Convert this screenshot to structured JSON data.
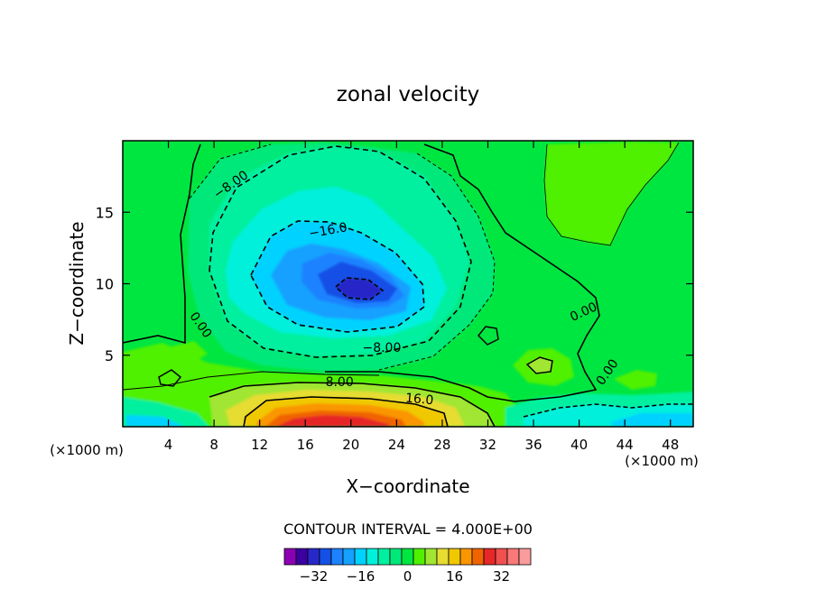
{
  "chart_data": {
    "type": "heatmap",
    "title": "zonal velocity",
    "xlabel": "X−coordinate",
    "ylabel": "Z−coordinate",
    "x_unit": "(×1000 m)",
    "x_unit_right": "(×1000 m)",
    "xlim": [
      0,
      50
    ],
    "ylim": [
      0,
      20
    ],
    "x_ticks": [
      4,
      8,
      12,
      16,
      20,
      24,
      28,
      32,
      36,
      40,
      44,
      48
    ],
    "y_ticks": [
      5,
      10,
      15
    ],
    "contour_interval_text": "CONTOUR INTERVAL = 4.000E+00",
    "colorbar": {
      "levels": [
        -40,
        -36,
        -32,
        -28,
        -24,
        -20,
        -16,
        -12,
        -8,
        -4,
        0,
        4,
        8,
        12,
        16,
        20,
        24,
        28,
        32,
        36,
        40
      ],
      "tick_labels": [
        {
          "value": -32,
          "text": "−32"
        },
        {
          "value": -16,
          "text": "−16"
        },
        {
          "value": 0,
          "text": "0"
        },
        {
          "value": 16,
          "text": "16"
        },
        {
          "value": 32,
          "text": "32"
        }
      ],
      "colors": [
        "#8c00b4",
        "#3c00a0",
        "#2828c8",
        "#1450e6",
        "#1e82ff",
        "#14a0ff",
        "#00d2ff",
        "#00f0dc",
        "#00f0a0",
        "#00e87a",
        "#00e641",
        "#50f000",
        "#a0e632",
        "#e6dc32",
        "#f0c800",
        "#fa9600",
        "#f06400",
        "#e62828",
        "#f05050",
        "#fa7878",
        "#fa9c9c"
      ]
    },
    "contour_labels": [
      {
        "x": 9.5,
        "y": 16.9,
        "text": "−8.00",
        "angle": -35
      },
      {
        "x": 18.0,
        "y": 13.7,
        "text": "−16.0",
        "angle": -10
      },
      {
        "x": 6.8,
        "y": 7.1,
        "text": "0.00",
        "angle": 55
      },
      {
        "x": 22.7,
        "y": 5.5,
        "text": "−8.00",
        "angle": 0
      },
      {
        "x": 19.0,
        "y": 3.1,
        "text": "8.00",
        "angle": 0
      },
      {
        "x": 26.0,
        "y": 1.9,
        "text": "16.0",
        "angle": 5
      },
      {
        "x": 40.4,
        "y": 8.0,
        "text": "0.00",
        "angle": -25
      },
      {
        "x": 42.5,
        "y": 3.8,
        "text": "0.00",
        "angle": -55
      }
    ]
  }
}
